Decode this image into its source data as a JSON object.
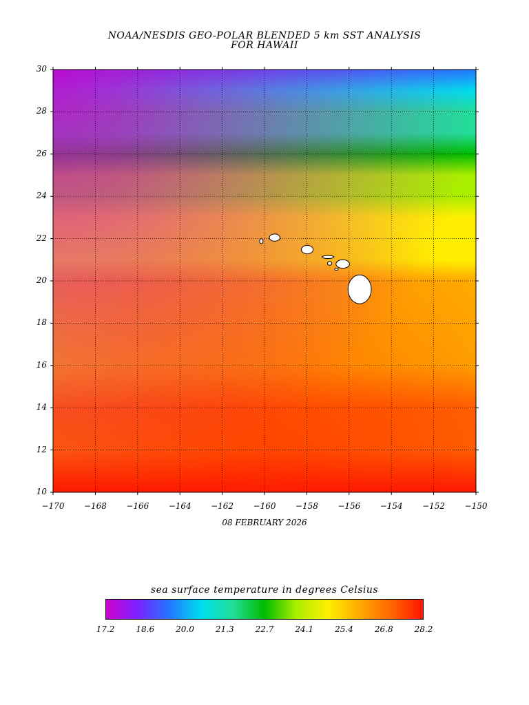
{
  "title_line1": "NOAA/NESDIS GEO-POLAR BLENDED 5 km SST ANALYSIS",
  "title_line2": "FOR HAWAII",
  "date": "08 FEBRUARY 2026",
  "colorbar": {
    "title": "sea surface temperature in degrees Celsius",
    "ticks": [
      "17.2",
      "18.6",
      "20.0",
      "21.3",
      "22.7",
      "24.1",
      "25.4",
      "26.8",
      "28.2"
    ],
    "stops": [
      "#cc00cc",
      "#7a22ff",
      "#2277ff",
      "#00ddee",
      "#22dd99",
      "#00bb00",
      "#aaee00",
      "#ffee00",
      "#ffaa00",
      "#ff6600",
      "#ff1500"
    ]
  },
  "axes": {
    "lon_ticks": [
      "-170",
      "-168",
      "-166",
      "-164",
      "-162",
      "-160",
      "-158",
      "-156",
      "-154",
      "-152",
      "-150"
    ],
    "lat_ticks": [
      "30",
      "28",
      "26",
      "24",
      "22",
      "20",
      "18",
      "16",
      "14",
      "12",
      "10"
    ]
  },
  "map": {
    "lon_range": [
      -170,
      -150
    ],
    "lat_range": [
      10,
      30
    ],
    "grid": true,
    "sst_field_by_latitude": [
      {
        "lat": 30,
        "sst": 19.0
      },
      {
        "lat": 29,
        "sst": 20.2
      },
      {
        "lat": 28,
        "sst": 21.2
      },
      {
        "lat": 27,
        "sst": 22.0
      },
      {
        "lat": 26,
        "sst": 22.8
      },
      {
        "lat": 25,
        "sst": 23.5
      },
      {
        "lat": 24,
        "sst": 24.0
      },
      {
        "lat": 23,
        "sst": 24.4
      },
      {
        "lat": 22,
        "sst": 24.8
      },
      {
        "lat": 21,
        "sst": 25.2
      },
      {
        "lat": 20,
        "sst": 25.6
      },
      {
        "lat": 18,
        "sst": 26.1
      },
      {
        "lat": 16,
        "sst": 26.5
      },
      {
        "lat": 14,
        "sst": 27.0
      },
      {
        "lat": 12,
        "sst": 27.4
      },
      {
        "lat": 10,
        "sst": 27.8
      }
    ],
    "islands": [
      {
        "name": "Niihau",
        "lon": -160.15,
        "lat": 21.88,
        "rx": 0.08,
        "ry": 0.12
      },
      {
        "name": "Kauai",
        "lon": -159.52,
        "lat": 22.05,
        "rx": 0.25,
        "ry": 0.17
      },
      {
        "name": "Oahu",
        "lon": -157.98,
        "lat": 21.48,
        "rx": 0.28,
        "ry": 0.2
      },
      {
        "name": "Molokai",
        "lon": -157.0,
        "lat": 21.13,
        "rx": 0.28,
        "ry": 0.07
      },
      {
        "name": "Lanai",
        "lon": -156.92,
        "lat": 20.83,
        "rx": 0.1,
        "ry": 0.09
      },
      {
        "name": "Maui",
        "lon": -156.3,
        "lat": 20.8,
        "rx": 0.32,
        "ry": 0.2
      },
      {
        "name": "Kahoolawe",
        "lon": -156.6,
        "lat": 20.55,
        "rx": 0.08,
        "ry": 0.05
      },
      {
        "name": "Hawaii",
        "lon": -155.5,
        "lat": 19.6,
        "rx": 0.55,
        "ry": 0.68
      }
    ]
  }
}
